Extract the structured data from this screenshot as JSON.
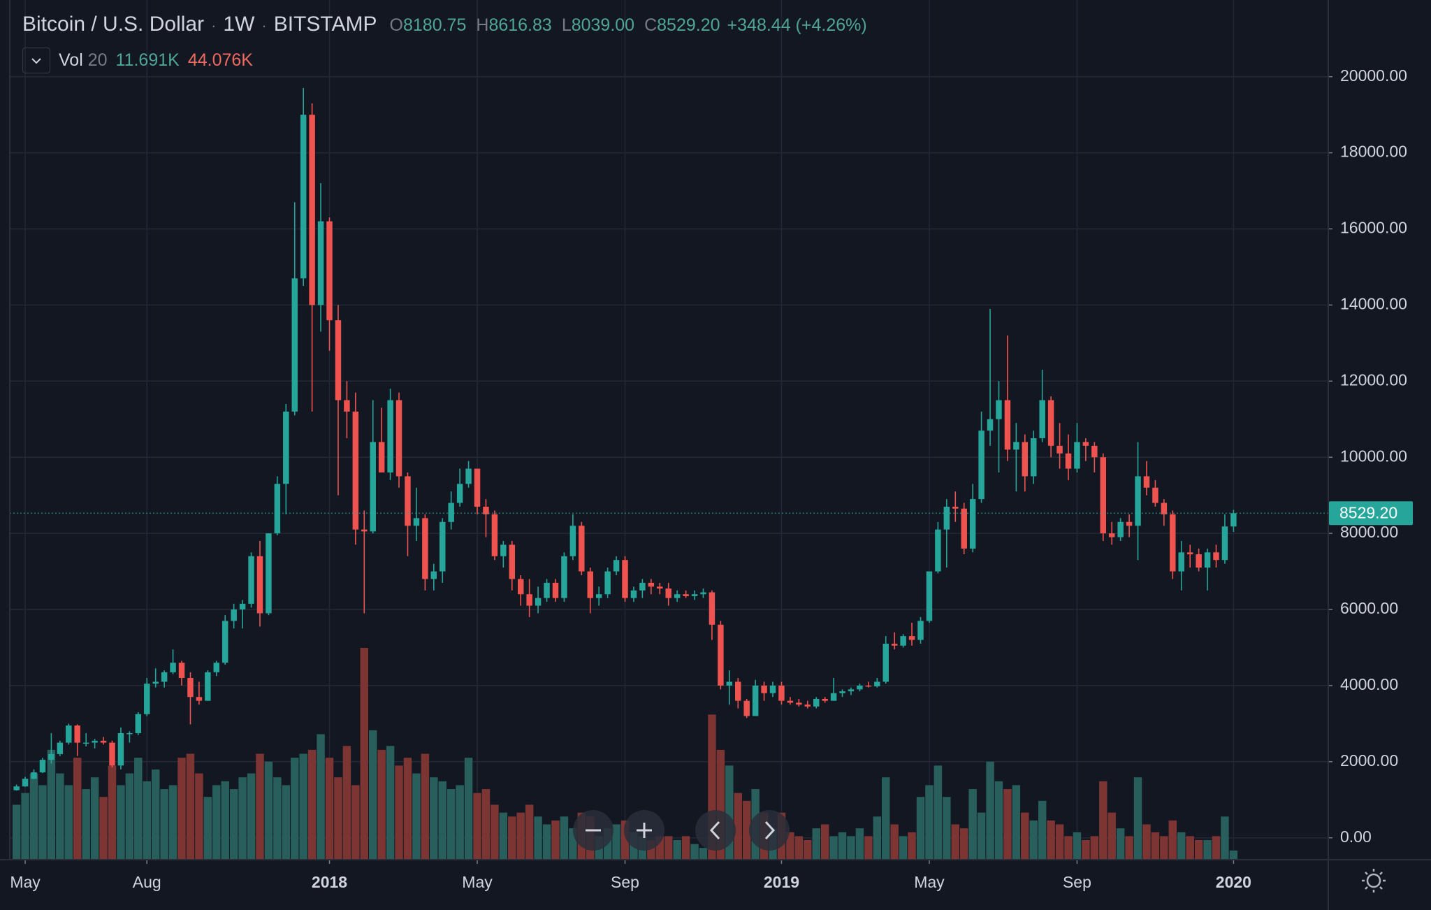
{
  "chart_data": {
    "type": "candlestick",
    "title": "Bitcoin / U.S. Dollar",
    "interval": "1W",
    "exchange": "BITSTAMP",
    "ohlc_labels": [
      {
        "key": "O",
        "text": "8180.75"
      },
      {
        "key": "H",
        "text": "8616.83"
      },
      {
        "key": "L",
        "text": "8039.00"
      },
      {
        "key": "C",
        "text": "8529.20"
      }
    ],
    "change_label": "+348.44 (+4.26%)",
    "volume_study": {
      "name": "Vol",
      "period": 20,
      "labels": [
        "11.691K",
        "44.076K"
      ]
    },
    "last_price_label": "8529.20",
    "ohlc": [
      [
        1250,
        1400,
        1240,
        1350
      ],
      [
        1350,
        1600,
        1340,
        1550
      ],
      [
        1550,
        1800,
        1540,
        1720
      ],
      [
        1720,
        2100,
        1700,
        2050
      ],
      [
        2050,
        2750,
        1950,
        2200
      ],
      [
        2200,
        2550,
        2150,
        2500
      ],
      [
        2500,
        3000,
        2450,
        2950
      ],
      [
        2950,
        2980,
        2150,
        2500
      ],
      [
        2500,
        2750,
        2400,
        2500
      ],
      [
        2500,
        2600,
        2350,
        2550
      ],
      [
        2550,
        2650,
        2450,
        2500
      ],
      [
        2500,
        2550,
        1850,
        1900
      ],
      [
        1900,
        2900,
        1800,
        2750
      ],
      [
        2750,
        2800,
        2500,
        2750
      ],
      [
        2750,
        3300,
        2700,
        3250
      ],
      [
        3250,
        4200,
        3200,
        4050
      ],
      [
        4050,
        4450,
        3950,
        4100
      ],
      [
        4100,
        4400,
        3950,
        4350
      ],
      [
        4350,
        4950,
        4300,
        4600
      ],
      [
        4600,
        4650,
        4000,
        4200
      ],
      [
        4200,
        4350,
        2980,
        3700
      ],
      [
        3700,
        4100,
        3500,
        3600
      ],
      [
        3600,
        4400,
        3600,
        4350
      ],
      [
        4350,
        4650,
        4250,
        4600
      ],
      [
        4600,
        5850,
        4550,
        5700
      ],
      [
        5700,
        6150,
        5500,
        6000
      ],
      [
        6000,
        6250,
        5500,
        6150
      ],
      [
        6150,
        7500,
        6050,
        7400
      ],
      [
        7400,
        7800,
        5550,
        5900
      ],
      [
        5900,
        8000,
        5850,
        8000
      ],
      [
        8000,
        9500,
        7950,
        9300
      ],
      [
        9300,
        11400,
        8500,
        11200
      ],
      [
        11200,
        16700,
        11100,
        14700
      ],
      [
        14700,
        19700,
        14500,
        19000
      ],
      [
        19000,
        19300,
        11200,
        14000
      ],
      [
        14000,
        17200,
        13300,
        16200
      ],
      [
        16200,
        16300,
        12800,
        13600
      ],
      [
        13600,
        14000,
        9000,
        11500
      ],
      [
        11500,
        12000,
        10500,
        11200
      ],
      [
        11200,
        11700,
        7700,
        8100
      ],
      [
        8100,
        8600,
        5900,
        8050
      ],
      [
        8050,
        11500,
        8000,
        10400
      ],
      [
        10400,
        11300,
        9600,
        9600
      ],
      [
        9600,
        11800,
        9400,
        11500
      ],
      [
        11500,
        11700,
        9200,
        9500
      ],
      [
        9500,
        9600,
        7400,
        8200
      ],
      [
        8200,
        9200,
        7800,
        8400
      ],
      [
        8400,
        8500,
        6500,
        6800
      ],
      [
        6800,
        7200,
        6500,
        7000
      ],
      [
        7000,
        8400,
        6700,
        8300
      ],
      [
        8300,
        9100,
        8100,
        8800
      ],
      [
        8800,
        9700,
        8700,
        9300
      ],
      [
        9300,
        9900,
        9200,
        9700
      ],
      [
        9700,
        9700,
        8500,
        8700
      ],
      [
        8700,
        8900,
        7900,
        8500
      ],
      [
        8500,
        8600,
        7300,
        7400
      ],
      [
        7400,
        7800,
        7100,
        7700
      ],
      [
        7700,
        7800,
        6500,
        6800
      ],
      [
        6800,
        6900,
        6100,
        6400
      ],
      [
        6400,
        6800,
        5800,
        6100
      ],
      [
        6100,
        6600,
        5900,
        6300
      ],
      [
        6300,
        6800,
        6200,
        6700
      ],
      [
        6700,
        6800,
        6200,
        6300
      ],
      [
        6300,
        7500,
        6200,
        7400
      ],
      [
        7400,
        8500,
        7300,
        8200
      ],
      [
        8200,
        8300,
        6900,
        7000
      ],
      [
        7000,
        7100,
        5900,
        6300
      ],
      [
        6300,
        6600,
        6100,
        6400
      ],
      [
        6400,
        7100,
        6300,
        7000
      ],
      [
        7000,
        7400,
        6900,
        7300
      ],
      [
        7300,
        7400,
        6200,
        6300
      ],
      [
        6300,
        6600,
        6200,
        6500
      ],
      [
        6500,
        6800,
        6300,
        6700
      ],
      [
        6700,
        6800,
        6400,
        6600
      ],
      [
        6600,
        6700,
        6400,
        6550
      ],
      [
        6550,
        6700,
        6100,
        6300
      ],
      [
        6300,
        6500,
        6200,
        6400
      ],
      [
        6400,
        6500,
        6300,
        6350
      ],
      [
        6350,
        6500,
        6250,
        6400
      ],
      [
        6400,
        6550,
        6300,
        6450
      ],
      [
        6450,
        6500,
        5200,
        5600
      ],
      [
        5600,
        5700,
        3900,
        4000
      ],
      [
        4000,
        4400,
        3500,
        4100
      ],
      [
        4100,
        4200,
        3400,
        3600
      ],
      [
        3600,
        3650,
        3150,
        3200
      ],
      [
        3200,
        4150,
        3200,
        4000
      ],
      [
        4000,
        4100,
        3600,
        3800
      ],
      [
        3800,
        4100,
        3700,
        4000
      ],
      [
        4000,
        4100,
        3500,
        3600
      ],
      [
        3600,
        3700,
        3500,
        3550
      ],
      [
        3550,
        3650,
        3450,
        3500
      ],
      [
        3500,
        3600,
        3400,
        3450
      ],
      [
        3450,
        3700,
        3400,
        3650
      ],
      [
        3650,
        3700,
        3550,
        3600
      ],
      [
        3600,
        4200,
        3600,
        3800
      ],
      [
        3800,
        3900,
        3700,
        3850
      ],
      [
        3850,
        3950,
        3750,
        3900
      ],
      [
        3900,
        4050,
        3850,
        4000
      ],
      [
        4000,
        4100,
        3950,
        3980
      ],
      [
        3980,
        4200,
        3950,
        4100
      ],
      [
        4100,
        5300,
        4050,
        5100
      ],
      [
        5100,
        5400,
        4950,
        5050
      ],
      [
        5050,
        5350,
        5000,
        5300
      ],
      [
        5300,
        5650,
        5050,
        5200
      ],
      [
        5200,
        5800,
        5100,
        5700
      ],
      [
        5700,
        7000,
        5650,
        7000
      ],
      [
        7000,
        8300,
        6950,
        8100
      ],
      [
        8100,
        8900,
        7100,
        8700
      ],
      [
        8700,
        9100,
        8300,
        8650
      ],
      [
        8650,
        8800,
        7450,
        7600
      ],
      [
        7600,
        9300,
        7500,
        8900
      ],
      [
        8900,
        11200,
        8800,
        10700
      ],
      [
        10700,
        13900,
        10300,
        11000
      ],
      [
        11000,
        12000,
        9600,
        11500
      ],
      [
        11500,
        13200,
        9900,
        10200
      ],
      [
        10200,
        10900,
        9100,
        10400
      ],
      [
        10400,
        10600,
        9100,
        9500
      ],
      [
        9500,
        10700,
        9300,
        10500
      ],
      [
        10500,
        12300,
        10400,
        11500
      ],
      [
        11500,
        11600,
        10000,
        10300
      ],
      [
        10300,
        10900,
        9700,
        10100
      ],
      [
        10100,
        10600,
        9400,
        9700
      ],
      [
        9700,
        10900,
        9600,
        10400
      ],
      [
        10400,
        10500,
        9900,
        10300
      ],
      [
        10300,
        10400,
        9600,
        10000
      ],
      [
        10000,
        10100,
        7800,
        8000
      ],
      [
        8000,
        8300,
        7700,
        7900
      ],
      [
        7900,
        8400,
        7800,
        8300
      ],
      [
        8300,
        8500,
        7900,
        8200
      ],
      [
        8200,
        10400,
        7300,
        9500
      ],
      [
        9500,
        9900,
        9000,
        9200
      ],
      [
        9200,
        9400,
        8700,
        8800
      ],
      [
        8800,
        8900,
        8200,
        8500
      ],
      [
        8500,
        8600,
        6800,
        7000
      ],
      [
        7000,
        7800,
        6500,
        7500
      ],
      [
        7500,
        7700,
        7100,
        7450
      ],
      [
        7450,
        7600,
        7000,
        7100
      ],
      [
        7100,
        7600,
        6500,
        7500
      ],
      [
        7500,
        7700,
        7100,
        7300
      ],
      [
        7300,
        8500,
        7200,
        8180.75
      ],
      [
        8180.75,
        8616.83,
        8039,
        8529.2
      ]
    ],
    "volume": [
      70,
      85,
      110,
      95,
      140,
      110,
      95,
      130,
      90,
      105,
      80,
      120,
      95,
      110,
      130,
      100,
      115,
      90,
      95,
      130,
      135,
      110,
      80,
      95,
      100,
      90,
      105,
      110,
      135,
      125,
      105,
      95,
      130,
      135,
      140,
      160,
      130,
      105,
      145,
      95,
      270,
      165,
      140,
      145,
      120,
      130,
      110,
      135,
      105,
      100,
      90,
      95,
      130,
      85,
      90,
      70,
      60,
      55,
      60,
      70,
      55,
      45,
      50,
      55,
      40,
      60,
      55,
      30,
      40,
      45,
      50,
      35,
      30,
      25,
      30,
      30,
      25,
      30,
      20,
      15,
      185,
      140,
      120,
      85,
      75,
      90,
      60,
      40,
      60,
      35,
      30,
      25,
      40,
      45,
      30,
      35,
      30,
      40,
      30,
      55,
      105,
      45,
      30,
      35,
      80,
      95,
      120,
      80,
      45,
      40,
      90,
      60,
      125,
      100,
      90,
      95,
      60,
      50,
      75,
      50,
      45,
      30,
      35,
      25,
      30,
      100,
      60,
      40,
      30,
      105,
      45,
      35,
      30,
      50,
      35,
      30,
      25,
      25,
      30,
      55,
      11.691
    ],
    "up_color": "#26a69a",
    "down_color": "#ef5350",
    "up_volume_color": "#285f5c",
    "down_volume_color": "#7d3533",
    "ylim": [
      -575,
      22015
    ],
    "yticks": [
      {
        "value": 0,
        "label": "0.00"
      },
      {
        "value": 2000,
        "label": "2000.00"
      },
      {
        "value": 4000,
        "label": "4000.00"
      },
      {
        "value": 6000,
        "label": "6000.00"
      },
      {
        "value": 8000,
        "label": "8000.00"
      },
      {
        "value": 10000,
        "label": "10000.00"
      },
      {
        "value": 12000,
        "label": "12000.00"
      },
      {
        "value": 14000,
        "label": "14000.00"
      },
      {
        "value": 16000,
        "label": "16000.00"
      },
      {
        "value": 18000,
        "label": "18000.00"
      },
      {
        "value": 20000,
        "label": "20000.00"
      }
    ],
    "xlim": [
      -1.9,
      150.9
    ],
    "xticks": [
      {
        "value": 1,
        "label": "May"
      },
      {
        "value": 15,
        "label": "Aug"
      },
      {
        "value": 36,
        "label": "2018"
      },
      {
        "value": 53,
        "label": "May"
      },
      {
        "value": 70,
        "label": "Sep"
      },
      {
        "value": 88,
        "label": "2019"
      },
      {
        "value": 105,
        "label": "May"
      },
      {
        "value": 122,
        "label": "Sep"
      },
      {
        "value": 140,
        "label": "2020"
      }
    ],
    "grid": true
  }
}
